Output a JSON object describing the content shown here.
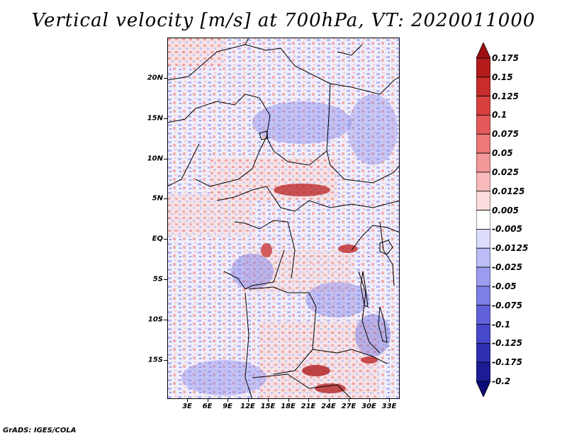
{
  "title": "Vertical velocity [m/s] at 700hPa, VT: 2020011000",
  "credit": "GrADS: IGES/COLA",
  "lat_labels": [
    "20N",
    "15N",
    "10N",
    "5N",
    "EQ",
    "5S",
    "10S",
    "15S"
  ],
  "lon_labels": [
    "3E",
    "6E",
    "9E",
    "12E",
    "15E",
    "18E",
    "21E",
    "24E",
    "27E",
    "30E",
    "33E"
  ],
  "colorbar": {
    "labels": [
      "0.175",
      "0.15",
      "0.125",
      "0.1",
      "0.075",
      "0.05",
      "0.025",
      "0.0125",
      "0.005",
      "-0.005",
      "-0.0125",
      "-0.025",
      "-0.05",
      "-0.075",
      "-0.1",
      "-0.125",
      "-0.175",
      "-0.2"
    ],
    "colors": [
      "#a01010",
      "#b41c1c",
      "#c82c2c",
      "#d84040",
      "#e45a5a",
      "#ec7878",
      "#f29898",
      "#f8baba",
      "#fcdcdc",
      "#ffffff",
      "#dcdcfc",
      "#bcbcf8",
      "#9c9cf0",
      "#7e7ee6",
      "#6262da",
      "#4848cc",
      "#3030b4",
      "#1c1c96",
      "#0c0c78"
    ]
  },
  "map_colors": {
    "neutral": "#ffffff",
    "warm": "#ec7878",
    "cool": "#8c8cee",
    "border": "#000000"
  }
}
